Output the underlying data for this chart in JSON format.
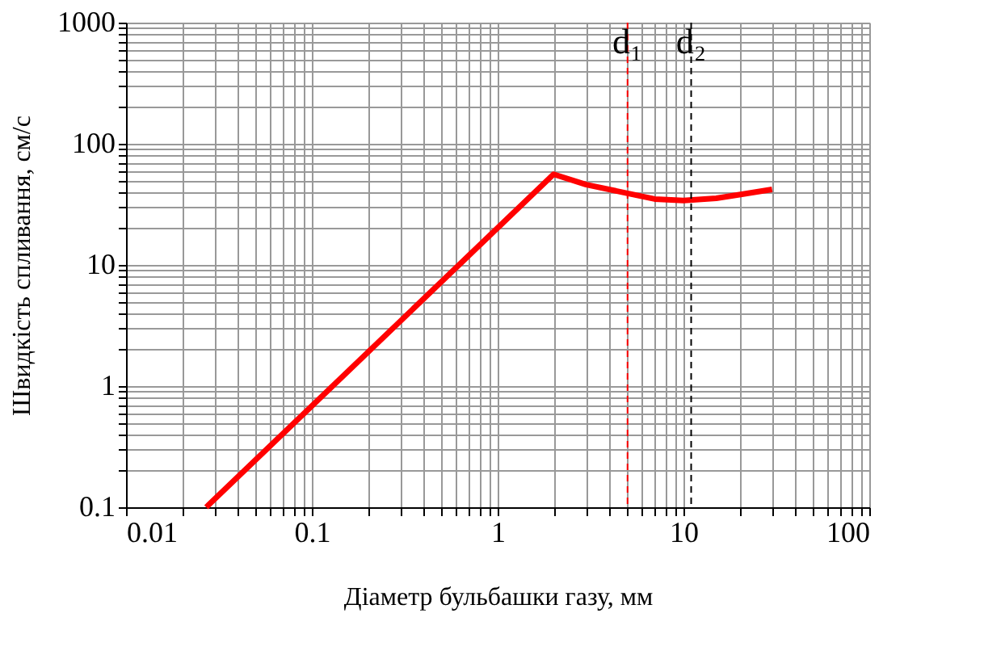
{
  "chart_data": {
    "type": "line",
    "xlabel": "Діаметр бульбашки газу, мм",
    "ylabel": "Швидкість спливання, см/с",
    "log": "xy",
    "grid": true,
    "marker": "none",
    "line_style": "solid",
    "x": [
      0.027,
      2,
      3,
      5,
      7,
      10,
      15,
      20,
      30
    ],
    "series": [
      {
        "color": "#ff0000",
        "values": [
          0.1,
          56,
          46,
          39,
          35,
          34,
          35.5,
          38,
          42
        ]
      }
    ],
    "xlim": [
      0.01,
      100
    ],
    "ylim": [
      0.1,
      1000
    ],
    "xticks": [
      0.01,
      {
        "value": 0.02,
        "label": null
      },
      {
        "value": 0.03,
        "label": null
      },
      {
        "value": 0.04,
        "label": null
      },
      {
        "value": 0.05,
        "label": null
      },
      {
        "value": 0.06,
        "label": null
      },
      {
        "value": 0.07,
        "label": null
      },
      {
        "value": 0.08,
        "label": null
      },
      {
        "value": 0.09,
        "label": null
      },
      0.1,
      {
        "value": 0.2,
        "label": null
      },
      {
        "value": 0.3,
        "label": null
      },
      {
        "value": 0.4,
        "label": null
      },
      {
        "value": 0.5,
        "label": null
      },
      {
        "value": 0.6,
        "label": null
      },
      {
        "value": 0.7,
        "label": null
      },
      {
        "value": 0.8,
        "label": null
      },
      {
        "value": 0.9,
        "label": null
      },
      1,
      {
        "value": 2,
        "label": null
      },
      {
        "value": 3,
        "label": null
      },
      {
        "value": 4,
        "label": null
      },
      {
        "value": 5,
        "label": null
      },
      {
        "value": 6,
        "label": null
      },
      {
        "value": 7,
        "label": null
      },
      {
        "value": 8,
        "label": null
      },
      {
        "value": 9,
        "label": null
      },
      10,
      {
        "value": 20,
        "label": null
      },
      {
        "value": 30,
        "label": null
      },
      {
        "value": 40,
        "label": null
      },
      {
        "value": 50,
        "label": null
      },
      {
        "value": 60,
        "label": null
      },
      {
        "value": 70,
        "label": null
      },
      {
        "value": 80,
        "label": null
      },
      {
        "value": 90,
        "label": null
      },
      100
    ],
    "yticks": [
      0.1,
      {
        "value": 0.2,
        "label": null
      },
      {
        "value": 0.3,
        "label": null
      },
      {
        "value": 0.4,
        "label": null
      },
      {
        "value": 0.5,
        "label": null
      },
      {
        "value": 0.6,
        "label": null
      },
      {
        "value": 0.7,
        "label": null
      },
      {
        "value": 0.8,
        "label": null
      },
      {
        "value": 0.9,
        "label": null
      },
      1,
      {
        "value": 2,
        "label": null
      },
      {
        "value": 3,
        "label": null
      },
      {
        "value": 4,
        "label": null
      },
      {
        "value": 5,
        "label": null
      },
      {
        "value": 6,
        "label": null
      },
      {
        "value": 7,
        "label": null
      },
      {
        "value": 8,
        "label": null
      },
      {
        "value": 9,
        "label": null
      },
      10,
      {
        "value": 20,
        "label": null
      },
      {
        "value": 30,
        "label": null
      },
      {
        "value": 40,
        "label": null
      },
      {
        "value": 50,
        "label": null
      },
      {
        "value": 60,
        "label": null
      },
      {
        "value": 70,
        "label": null
      },
      {
        "value": 80,
        "label": null
      },
      {
        "value": 90,
        "label": null
      },
      100,
      {
        "value": 200,
        "label": null
      },
      {
        "value": 300,
        "label": null
      },
      {
        "value": 400,
        "label": null
      },
      {
        "value": 500,
        "label": null
      },
      {
        "value": 600,
        "label": null
      },
      {
        "value": 700,
        "label": null
      },
      {
        "value": 800,
        "label": null
      },
      {
        "value": 900,
        "label": null
      },
      1000
    ],
    "ref_lines": [
      {
        "axis": "x",
        "value": 5,
        "label": "d₁",
        "color": "#ff0000",
        "line_style": "dashed"
      },
      {
        "axis": "x",
        "value": 11,
        "label": "d₂",
        "color": "#000000",
        "line_style": "dashed"
      }
    ]
  }
}
